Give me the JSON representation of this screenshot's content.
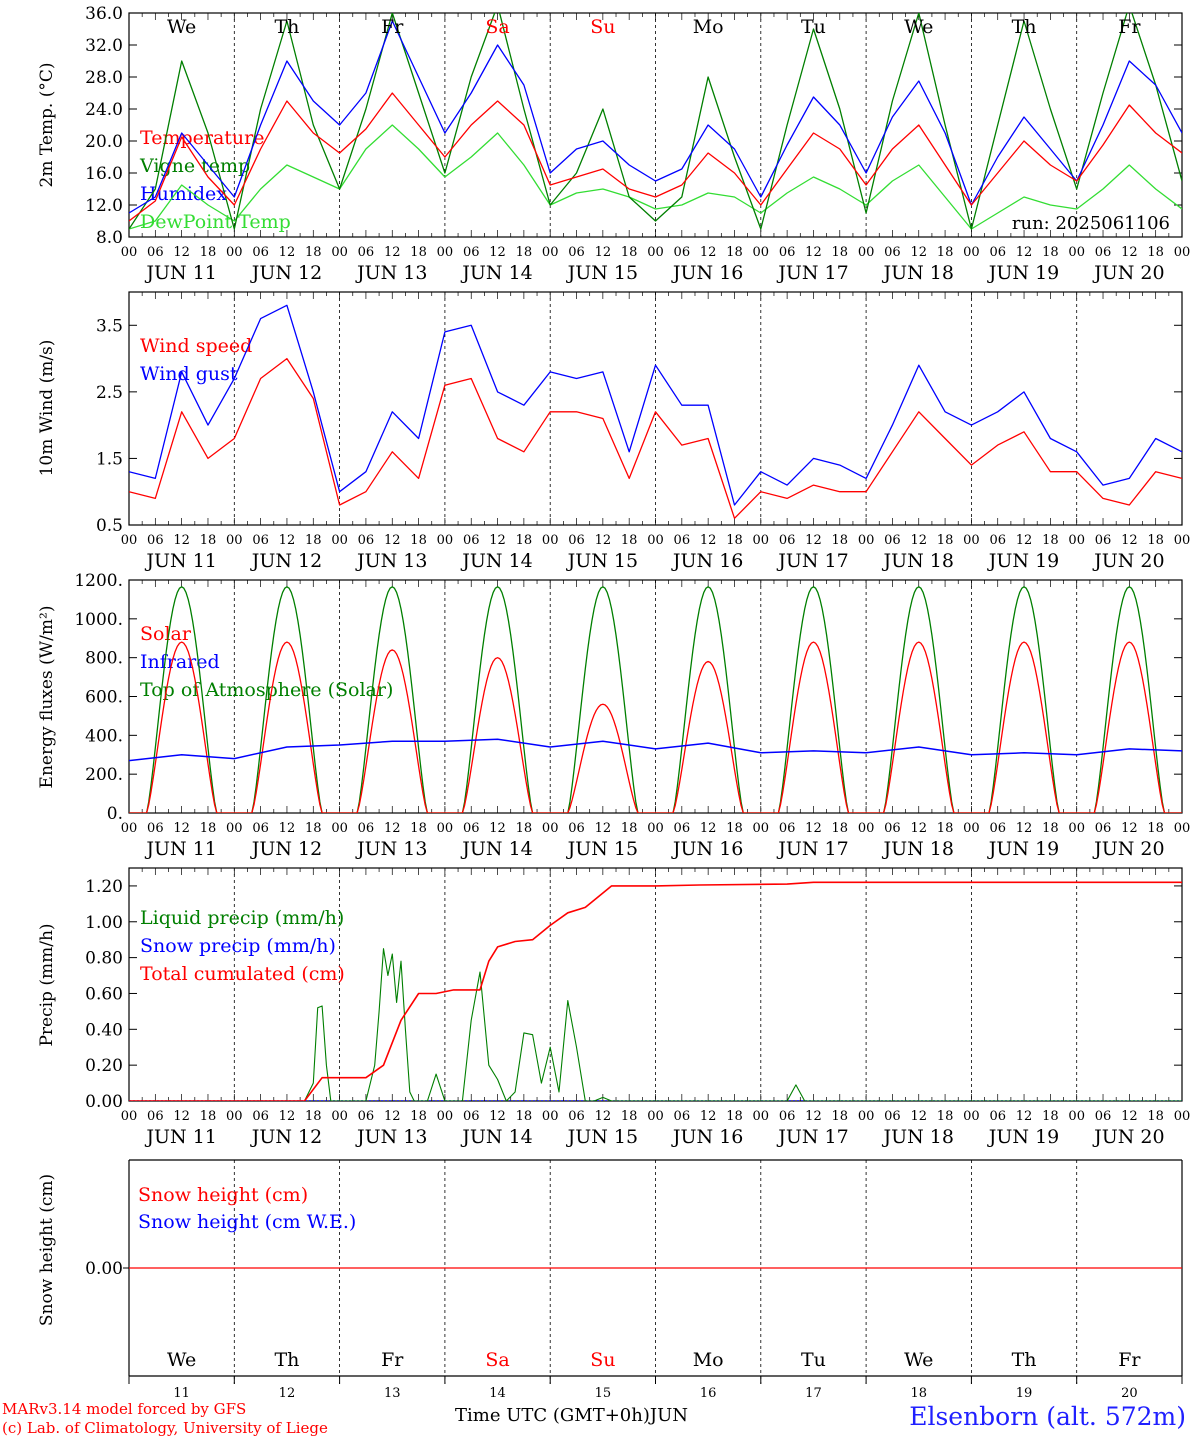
{
  "colors": {
    "red": "#ff0000",
    "darkgreen": "#007f00",
    "lightgreen": "#33dd33",
    "blue": "#0000ff",
    "black": "#000000"
  },
  "footer": {
    "credit_line1": "MARv3.14 model forced by GFS",
    "credit_line2": "(c) Lab. of Climatology, University of Liege",
    "axis_title": "Time UTC (GMT+0h)",
    "month": "JUN",
    "station": "Elsenborn (alt. 572m)"
  },
  "run_label": "run: 2025061106",
  "chart_data": [
    {
      "type": "line",
      "panel": "temperature",
      "ylabel": "2m Temp. (°C)",
      "ylim": [
        8,
        36
      ],
      "yticks": [
        "8.0",
        "12.0",
        "16.0",
        "20.0",
        "24.0",
        "28.0",
        "32.0",
        "36.0"
      ],
      "weekdays": [
        {
          "label": "We",
          "color": "#000000"
        },
        {
          "label": "Th",
          "color": "#000000"
        },
        {
          "label": "Fr",
          "color": "#000000"
        },
        {
          "label": "Sa",
          "color": "#ff0000"
        },
        {
          "label": "Su",
          "color": "#ff0000"
        },
        {
          "label": "Mo",
          "color": "#000000"
        },
        {
          "label": "Tu",
          "color": "#000000"
        },
        {
          "label": "We",
          "color": "#000000"
        },
        {
          "label": "Th",
          "color": "#000000"
        },
        {
          "label": "Fr",
          "color": "#000000"
        }
      ],
      "hour_labels": [
        "00",
        "06",
        "12",
        "18"
      ],
      "day_labels": [
        "JUN 11",
        "JUN 12",
        "JUN 13",
        "JUN 14",
        "JUN 15",
        "JUN 16",
        "JUN 17",
        "JUN 18",
        "JUN 19",
        "JUN 20"
      ],
      "legend": [
        {
          "label": "Temperature",
          "color": "#ff0000"
        },
        {
          "label": "Vigne temp",
          "color": "#007f00"
        },
        {
          "label": "Humidex",
          "color": "#0000ff"
        },
        {
          "label": "DewPoint Temp",
          "color": "#33dd33"
        }
      ],
      "x_hours": [
        0,
        6,
        12,
        18,
        24,
        30,
        36,
        42,
        48,
        54,
        60,
        66,
        72,
        78,
        84,
        90,
        96,
        102,
        108,
        114,
        120,
        126,
        132,
        138,
        144,
        150,
        156,
        162,
        168,
        174,
        180,
        186,
        192,
        198,
        204,
        210,
        216,
        222,
        228,
        234,
        240
      ],
      "series": [
        {
          "name": "Temperature",
          "color": "#ff0000",
          "values": [
            10,
            12.5,
            20.5,
            15.5,
            12,
            19,
            25,
            21,
            18.5,
            21.5,
            26,
            22,
            18,
            22,
            25,
            22,
            14.5,
            15.5,
            16.5,
            14,
            13,
            14.5,
            18.5,
            16,
            12,
            16.5,
            21,
            19,
            14.5,
            19,
            22,
            17,
            12,
            16,
            20,
            17,
            15,
            19.5,
            24.5,
            21,
            18.5
          ]
        },
        {
          "name": "Vigne temp",
          "color": "#007f00",
          "values": [
            9,
            14,
            30,
            21,
            9,
            24,
            35,
            22,
            14,
            24,
            36,
            26,
            16,
            28,
            37,
            24,
            12,
            16,
            24,
            13,
            10,
            13,
            28,
            18,
            9,
            22,
            34,
            24,
            11,
            25,
            36,
            22,
            9,
            22,
            35,
            24,
            14,
            26,
            37,
            27,
            15
          ]
        },
        {
          "name": "Humidex",
          "color": "#0000ff",
          "values": [
            11,
            13,
            21,
            17,
            13,
            22,
            30,
            25,
            22,
            26,
            35,
            28,
            21,
            26,
            32,
            27,
            16,
            19,
            20,
            17,
            15,
            16.5,
            22,
            19,
            13,
            19.5,
            25.5,
            22,
            16,
            23,
            27.5,
            21,
            12,
            18,
            23,
            19,
            15,
            22,
            30,
            27,
            21
          ]
        },
        {
          "name": "DewPoint Temp",
          "color": "#33dd33",
          "values": [
            9,
            10,
            14.5,
            12,
            10,
            14,
            17,
            15.5,
            14,
            19,
            22,
            19,
            15.5,
            18,
            21,
            17,
            12,
            13.5,
            14,
            13,
            11.5,
            12,
            13.5,
            13,
            11,
            13.5,
            15.5,
            14,
            12,
            15,
            17,
            13,
            9,
            11,
            13,
            12,
            11.5,
            14,
            17,
            14,
            11.5
          ]
        }
      ]
    },
    {
      "type": "line",
      "panel": "wind",
      "ylabel": "10m Wind (m/s)",
      "ylim": [
        0.5,
        4.0
      ],
      "yticks": [
        "0.5",
        "1.5",
        "2.5",
        "3.5"
      ],
      "hour_labels": [
        "00",
        "06",
        "12",
        "18"
      ],
      "day_labels": [
        "JUN 11",
        "JUN 12",
        "JUN 13",
        "JUN 14",
        "JUN 15",
        "JUN 16",
        "JUN 17",
        "JUN 18",
        "JUN 19",
        "JUN 20"
      ],
      "legend": [
        {
          "label": "Wind speed",
          "color": "#ff0000"
        },
        {
          "label": "Wind gust",
          "color": "#0000ff"
        }
      ],
      "x_hours": [
        0,
        6,
        12,
        18,
        24,
        30,
        36,
        42,
        48,
        54,
        60,
        66,
        72,
        78,
        84,
        90,
        96,
        102,
        108,
        114,
        120,
        126,
        132,
        138,
        144,
        150,
        156,
        162,
        168,
        174,
        180,
        186,
        192,
        198,
        204,
        210,
        216,
        222,
        228,
        234,
        240
      ],
      "series": [
        {
          "name": "Wind speed",
          "color": "#ff0000",
          "values": [
            1.0,
            0.9,
            2.2,
            1.5,
            1.8,
            2.7,
            3.0,
            2.4,
            0.8,
            1.0,
            1.6,
            1.2,
            2.6,
            2.7,
            1.8,
            1.6,
            2.2,
            2.2,
            2.1,
            1.2,
            2.2,
            1.7,
            1.8,
            0.6,
            1.0,
            0.9,
            1.1,
            1.0,
            1.0,
            1.6,
            2.2,
            1.8,
            1.4,
            1.7,
            1.9,
            1.3,
            1.3,
            0.9,
            0.8,
            1.3,
            1.2
          ]
        },
        {
          "name": "Wind gust",
          "color": "#0000ff",
          "values": [
            1.3,
            1.2,
            2.8,
            2.0,
            2.7,
            3.6,
            3.8,
            2.5,
            1.0,
            1.3,
            2.2,
            1.8,
            3.4,
            3.5,
            2.5,
            2.3,
            2.8,
            2.7,
            2.8,
            1.6,
            2.9,
            2.3,
            2.3,
            0.8,
            1.3,
            1.1,
            1.5,
            1.4,
            1.2,
            2.0,
            2.9,
            2.2,
            2.0,
            2.2,
            2.5,
            1.8,
            1.6,
            1.1,
            1.2,
            1.8,
            1.6
          ]
        }
      ]
    },
    {
      "type": "line",
      "panel": "energy",
      "ylabel": "Energy fluxes (W/m²)",
      "ylim": [
        0,
        1200
      ],
      "yticks": [
        "0.",
        "200.",
        "400.",
        "600.",
        "800.",
        "1000.",
        "1200."
      ],
      "hour_labels": [
        "00",
        "06",
        "12",
        "18"
      ],
      "day_labels": [
        "JUN 11",
        "JUN 12",
        "JUN 13",
        "JUN 14",
        "JUN 15",
        "JUN 16",
        "JUN 17",
        "JUN 18",
        "JUN 19",
        "JUN 20"
      ],
      "legend": [
        {
          "label": "Solar",
          "color": "#ff0000"
        },
        {
          "label": "Infrared",
          "color": "#0000ff"
        },
        {
          "label": "Top of Atmosphere (Solar)",
          "color": "#007f00"
        }
      ],
      "solar_daily_peak": [
        880,
        880,
        840,
        800,
        560,
        780,
        880,
        880,
        880,
        880
      ],
      "toa_daily_peak": 1165,
      "day_length_hours": [
        4,
        20
      ],
      "infrared": {
        "name": "Infrared",
        "color": "#0000ff",
        "x_hours": [
          0,
          12,
          24,
          36,
          48,
          60,
          72,
          84,
          96,
          108,
          120,
          132,
          144,
          156,
          168,
          180,
          192,
          204,
          216,
          228,
          240
        ],
        "values": [
          270,
          300,
          280,
          340,
          350,
          370,
          370,
          380,
          340,
          370,
          330,
          360,
          310,
          320,
          310,
          340,
          300,
          310,
          300,
          330,
          320
        ]
      }
    },
    {
      "type": "line",
      "panel": "precip",
      "ylabel": "Precip (mm/h)",
      "ylim": [
        0,
        1.3
      ],
      "yticks": [
        "0.00",
        "0.20",
        "0.40",
        "0.60",
        "0.80",
        "1.00",
        "1.20"
      ],
      "hour_labels": [
        "00",
        "06",
        "12",
        "18"
      ],
      "day_labels": [
        "JUN 11",
        "JUN 12",
        "JUN 13",
        "JUN 14",
        "JUN 15",
        "JUN 16",
        "JUN 17",
        "JUN 18",
        "JUN 19",
        "JUN 20"
      ],
      "legend": [
        {
          "label": "Liquid precip (mm/h)",
          "color": "#007f00"
        },
        {
          "label": "Snow precip (mm/h)",
          "color": "#0000ff"
        },
        {
          "label": "Total cumulated (cm)",
          "color": "#ff0000"
        }
      ],
      "series": [
        {
          "name": "Liquid precip (mm/h)",
          "color": "#007f00",
          "x": [
            0,
            40,
            42,
            43,
            44,
            45,
            46,
            48,
            54,
            56,
            57,
            58,
            59,
            60,
            61,
            62,
            63,
            64,
            65,
            66,
            68,
            70,
            72,
            74,
            76,
            78,
            80,
            82,
            84,
            86,
            88,
            90,
            92,
            94,
            96,
            98,
            100,
            102,
            104,
            106,
            108,
            110,
            112,
            150,
            152,
            154,
            240
          ],
          "values": [
            0,
            0,
            0.1,
            0.52,
            0.53,
            0.2,
            0,
            0,
            0,
            0.2,
            0.5,
            0.85,
            0.7,
            0.82,
            0.55,
            0.78,
            0.4,
            0.05,
            0,
            0,
            0,
            0.15,
            0,
            0,
            0,
            0.45,
            0.72,
            0.2,
            0.12,
            0,
            0.05,
            0.38,
            0.37,
            0.1,
            0.3,
            0.05,
            0.56,
            0.3,
            0,
            0,
            0.02,
            0,
            0,
            0,
            0.09,
            0,
            0
          ]
        },
        {
          "name": "Snow precip (mm/h)",
          "color": "#0000ff",
          "x": [
            0,
            240
          ],
          "values": [
            0,
            0
          ]
        },
        {
          "name": "Total cumulated (cm)",
          "color": "#ff0000",
          "x": [
            0,
            40,
            44,
            48,
            54,
            58,
            62,
            66,
            70,
            74,
            80,
            82,
            84,
            88,
            92,
            96,
            100,
            104,
            110,
            120,
            130,
            150,
            156,
            240
          ],
          "values": [
            0,
            0,
            0.13,
            0.13,
            0.13,
            0.2,
            0.45,
            0.6,
            0.6,
            0.62,
            0.62,
            0.78,
            0.86,
            0.89,
            0.9,
            0.98,
            1.05,
            1.08,
            1.2,
            1.2,
            1.205,
            1.21,
            1.22,
            1.22
          ]
        }
      ]
    },
    {
      "type": "line",
      "panel": "snow",
      "ylabel": "Snow height (cm)",
      "ylim": [
        -0.01,
        0.01
      ],
      "yticks": [
        "0.00"
      ],
      "legend": [
        {
          "label": "Snow height (cm)",
          "color": "#ff0000"
        },
        {
          "label": "Snow height (cm W.E.)",
          "color": "#0000ff"
        }
      ],
      "weekdays": [
        {
          "label": "We",
          "color": "#000000"
        },
        {
          "label": "Th",
          "color": "#000000"
        },
        {
          "label": "Fr",
          "color": "#000000"
        },
        {
          "label": "Sa",
          "color": "#ff0000"
        },
        {
          "label": "Su",
          "color": "#ff0000"
        },
        {
          "label": "Mo",
          "color": "#000000"
        },
        {
          "label": "Tu",
          "color": "#000000"
        },
        {
          "label": "We",
          "color": "#000000"
        },
        {
          "label": "Th",
          "color": "#000000"
        },
        {
          "label": "Fr",
          "color": "#000000"
        }
      ],
      "day_numbers": [
        "11",
        "12",
        "13",
        "14",
        "15",
        "16",
        "17",
        "18",
        "19",
        "20"
      ],
      "series": [
        {
          "name": "Snow height (cm)",
          "color": "#ff0000",
          "x": [
            0,
            240
          ],
          "values": [
            0,
            0
          ]
        }
      ]
    }
  ]
}
